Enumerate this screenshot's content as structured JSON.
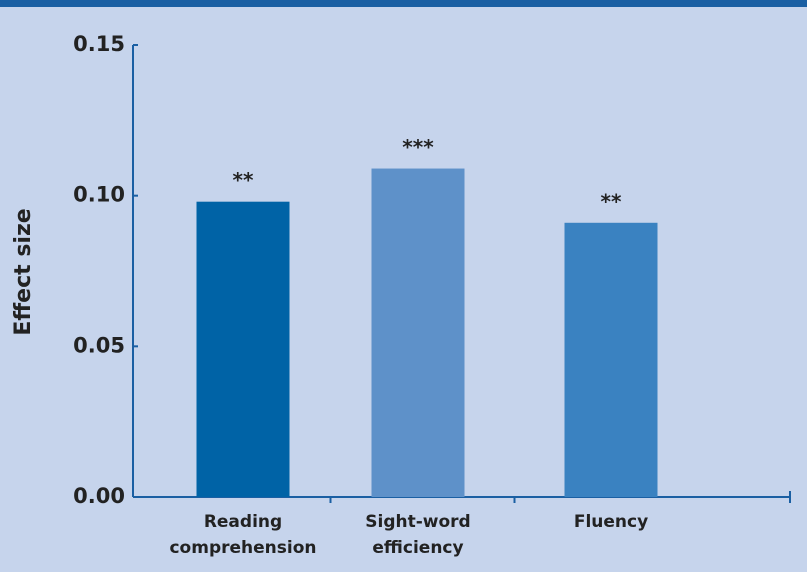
{
  "chart_data": {
    "type": "bar",
    "y_label": "Effect size",
    "categories": [
      [
        "Reading",
        "comprehension"
      ],
      [
        "Sight-word",
        "efficiency"
      ],
      [
        "Fluency"
      ]
    ],
    "values": [
      0.098,
      0.109,
      0.091
    ],
    "annotations": [
      "**",
      "***",
      "**"
    ],
    "colors": [
      "#0063a6",
      "#5e91c9",
      "#3a82c1"
    ],
    "ylim": [
      0,
      0.15
    ],
    "yticks": [
      {
        "value": 0,
        "label": "0.00"
      },
      {
        "value": 0.05,
        "label": "0.05"
      },
      {
        "value": 0.1,
        "label": "0.10"
      },
      {
        "value": 0.15,
        "label": "0.15"
      }
    ],
    "grid": false
  }
}
